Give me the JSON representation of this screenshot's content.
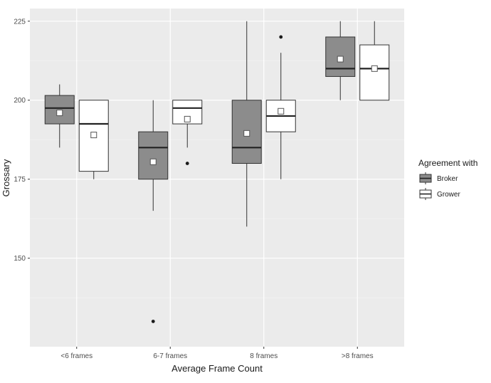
{
  "chart_data": {
    "type": "boxplot",
    "title": "",
    "xlabel": "Average Frame Count",
    "ylabel": "Grossary",
    "ylim": [
      122,
      229
    ],
    "yticks": [
      150,
      175,
      200,
      225
    ],
    "categories": [
      "<6 frames",
      "6-7 frames",
      "8 frames",
      ">8 frames"
    ],
    "legend": {
      "title": "Agreement with",
      "position": "right"
    },
    "series": [
      {
        "name": "Broker",
        "color": "#8c8c8c",
        "boxes": [
          {
            "whisker_low": 185,
            "q1": 192.5,
            "median": 197.5,
            "q3": 201.5,
            "whisker_high": 205,
            "mean": 196,
            "outliers": []
          },
          {
            "whisker_low": 165,
            "q1": 175,
            "median": 185,
            "q3": 190,
            "whisker_high": 200,
            "mean": 180.5,
            "outliers": [
              130
            ]
          },
          {
            "whisker_low": 160,
            "q1": 180,
            "median": 185,
            "q3": 200,
            "whisker_high": 225,
            "mean": 189.5,
            "outliers": []
          },
          {
            "whisker_low": 200,
            "q1": 207.5,
            "median": 210,
            "q3": 220,
            "whisker_high": 225,
            "mean": 213,
            "outliers": []
          }
        ]
      },
      {
        "name": "Grower",
        "color": "#ffffff",
        "boxes": [
          {
            "whisker_low": 175,
            "q1": 177.5,
            "median": 192.5,
            "q3": 200,
            "whisker_high": 200,
            "mean": 189,
            "outliers": []
          },
          {
            "whisker_low": 185,
            "q1": 192.5,
            "median": 197.5,
            "q3": 200,
            "whisker_high": 200,
            "mean": 194,
            "outliers": [
              180
            ]
          },
          {
            "whisker_low": 175,
            "q1": 190,
            "median": 195,
            "q3": 200,
            "whisker_high": 215,
            "mean": 196.5,
            "outliers": [
              220
            ]
          },
          {
            "whisker_low": 200,
            "q1": 200,
            "median": 210,
            "q3": 217.5,
            "whisker_high": 225,
            "mean": 210,
            "outliers": []
          }
        ]
      }
    ]
  },
  "colors": {
    "panel": "#ebebeb",
    "grid_major": "#ffffff",
    "grid_minor": "#f5f5f5",
    "box_stroke": "#333333"
  }
}
